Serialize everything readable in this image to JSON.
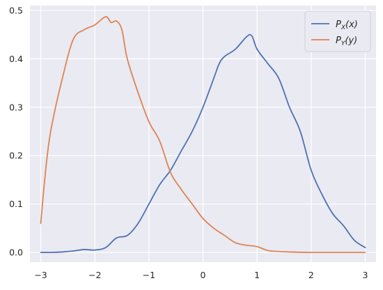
{
  "chart_data": {
    "type": "line",
    "title": "",
    "xlabel": "",
    "ylabel": "",
    "xlim": [
      -3.2,
      3.2
    ],
    "ylim": [
      -0.02,
      0.51
    ],
    "xticks": [
      -3,
      -2,
      -1,
      0,
      1,
      2,
      3
    ],
    "yticks": [
      0.0,
      0.1,
      0.2,
      0.3,
      0.4,
      0.5
    ],
    "xtick_labels": [
      "−3",
      "−2",
      "−1",
      "0",
      "1",
      "2",
      "3"
    ],
    "ytick_labels": [
      "0.0",
      "0.1",
      "0.2",
      "0.3",
      "0.4",
      "0.5"
    ],
    "grid": true,
    "legend_position": "top-right",
    "background": "#eaeaf2",
    "series": [
      {
        "name": "P_X(x)",
        "label_main": "P",
        "label_sub": "X",
        "label_arg": "(x)",
        "color": "#4c72b0",
        "x": [
          -3.0,
          -2.8,
          -2.6,
          -2.4,
          -2.2,
          -2.0,
          -1.8,
          -1.6,
          -1.4,
          -1.2,
          -1.0,
          -0.8,
          -0.6,
          -0.4,
          -0.2,
          0.0,
          0.2,
          0.3,
          0.4,
          0.6,
          0.8,
          0.9,
          1.0,
          1.2,
          1.4,
          1.6,
          1.8,
          2.0,
          2.2,
          2.4,
          2.6,
          2.8,
          3.0
        ],
        "y": [
          0.0,
          0.0,
          0.001,
          0.003,
          0.006,
          0.005,
          0.01,
          0.03,
          0.035,
          0.06,
          0.1,
          0.14,
          0.17,
          0.21,
          0.25,
          0.3,
          0.36,
          0.39,
          0.405,
          0.42,
          0.445,
          0.448,
          0.42,
          0.39,
          0.36,
          0.3,
          0.25,
          0.17,
          0.12,
          0.08,
          0.055,
          0.025,
          0.01
        ]
      },
      {
        "name": "P_Y(y)",
        "label_main": "P",
        "label_sub": "Y",
        "label_arg": "(y)",
        "color": "#dd8452",
        "x": [
          -3.0,
          -2.9,
          -2.8,
          -2.6,
          -2.4,
          -2.2,
          -2.0,
          -1.8,
          -1.7,
          -1.6,
          -1.5,
          -1.4,
          -1.2,
          -1.0,
          -0.8,
          -0.6,
          -0.4,
          -0.2,
          0.0,
          0.2,
          0.4,
          0.6,
          0.8,
          1.0,
          1.2,
          1.4,
          1.6,
          2.0,
          2.4,
          3.0
        ],
        "y": [
          0.06,
          0.18,
          0.26,
          0.36,
          0.44,
          0.46,
          0.47,
          0.487,
          0.475,
          0.478,
          0.46,
          0.4,
          0.33,
          0.27,
          0.23,
          0.165,
          0.13,
          0.1,
          0.07,
          0.05,
          0.035,
          0.02,
          0.015,
          0.012,
          0.004,
          0.002,
          0.001,
          0.0,
          0.0,
          0.0
        ]
      }
    ]
  }
}
